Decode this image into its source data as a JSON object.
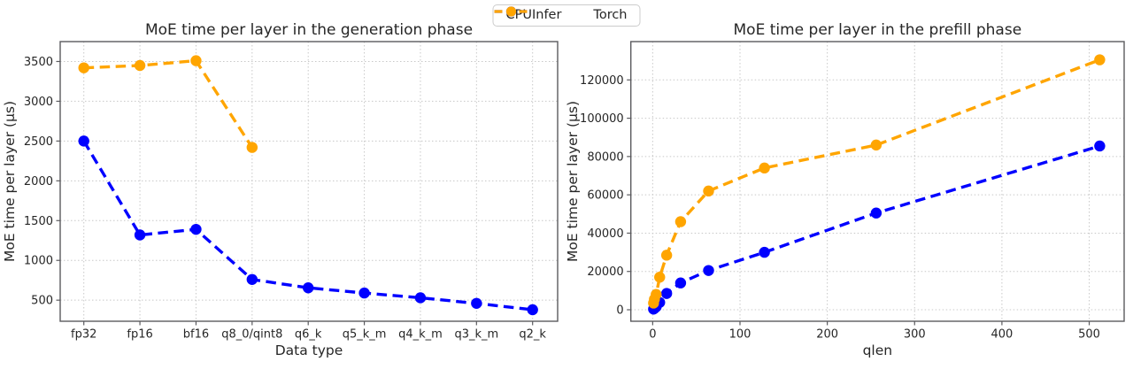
{
  "figure": {
    "background": "#ffffff",
    "grid_color": "#c8c8c8",
    "spine_color": "#5a5a5e",
    "text_color": "#262626"
  },
  "legend": {
    "position": "figure-top-center",
    "items": [
      {
        "label": "CPUInfer",
        "color": "#0000ff",
        "marker": "circle",
        "linestyle": "dashed"
      },
      {
        "label": "Torch",
        "color": "#ffa500",
        "marker": "circle",
        "linestyle": "dashed"
      }
    ]
  },
  "chart_data": [
    {
      "id": "generation",
      "type": "line",
      "title": "MoE time per layer in the generation phase",
      "xlabel": "Data type",
      "ylabel": "MoE time per layer (µs)",
      "x_type": "categorical",
      "categories": [
        "fp32",
        "fp16",
        "bf16",
        "q8_0/qint8",
        "q6_k",
        "q5_k_m",
        "q4_k_m",
        "q3_k_m",
        "q2_k"
      ],
      "yticks": [
        500,
        1000,
        1500,
        2000,
        2500,
        3000,
        3500
      ],
      "ylim": [
        235,
        3750
      ],
      "grid": true,
      "series": [
        {
          "name": "CPUInfer",
          "color": "#0000ff",
          "linestyle": "dashed",
          "marker": "circle",
          "values": [
            2500,
            1320,
            1390,
            760,
            655,
            590,
            530,
            460,
            380
          ]
        },
        {
          "name": "Torch",
          "color": "#ffa500",
          "linestyle": "dashed",
          "marker": "circle",
          "values": [
            3420,
            3450,
            3510,
            2420,
            null,
            null,
            null,
            null,
            null
          ]
        }
      ]
    },
    {
      "id": "prefill",
      "type": "line",
      "title": "MoE time per layer in the prefill phase",
      "xlabel": "qlen",
      "ylabel": "MoE time per layer (µs)",
      "x_type": "linear",
      "x": [
        1,
        2,
        4,
        8,
        16,
        32,
        64,
        128,
        256,
        512
      ],
      "xticks": [
        0,
        100,
        200,
        300,
        400,
        500
      ],
      "xlim": [
        -25,
        540
      ],
      "yticks": [
        0,
        20000,
        40000,
        60000,
        80000,
        100000,
        120000
      ],
      "ylim": [
        -6000,
        140000
      ],
      "grid": true,
      "series": [
        {
          "name": "CPUInfer",
          "color": "#0000ff",
          "linestyle": "dashed",
          "marker": "circle",
          "values": [
            350,
            700,
            1500,
            3800,
            8500,
            14000,
            20500,
            30000,
            50500,
            85500
          ]
        },
        {
          "name": "Torch",
          "color": "#ffa500",
          "linestyle": "dashed",
          "marker": "circle",
          "values": [
            3500,
            5500,
            8000,
            17000,
            28500,
            46000,
            62000,
            74000,
            86000,
            130500
          ]
        }
      ]
    }
  ]
}
